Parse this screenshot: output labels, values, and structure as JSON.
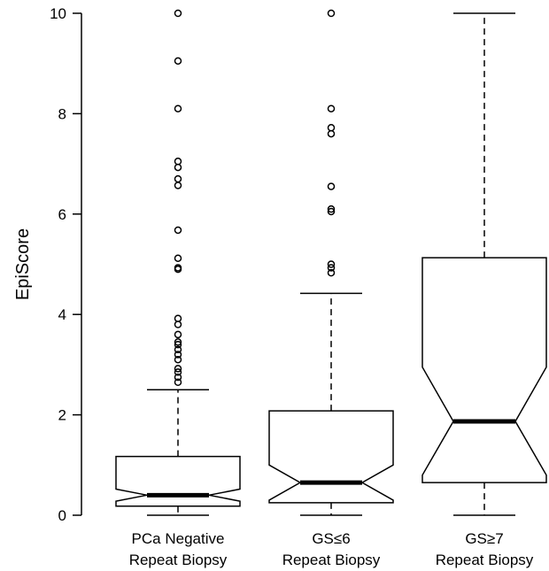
{
  "chart_data": {
    "type": "box",
    "notched": true,
    "ylabel": "EpiScore",
    "ylim": [
      0,
      10
    ],
    "yticks": [
      0,
      2,
      4,
      6,
      8,
      10
    ],
    "axis_style": "left and bottom axes only, no grid",
    "categories": [
      {
        "line1": "PCa Negative",
        "line2": "Repeat Biopsy"
      },
      {
        "line1": "GS≤6",
        "line2": "Repeat Biopsy"
      },
      {
        "line1": "GS≥7",
        "line2": "Repeat Biopsy"
      }
    ],
    "boxes": [
      {
        "min": 0.0,
        "q1": 0.18,
        "median": 0.4,
        "q3": 1.17,
        "max": 2.5,
        "notch_low": 0.28,
        "notch_high": 0.52,
        "outliers": [
          2.65,
          2.75,
          2.85,
          2.92,
          3.1,
          3.2,
          3.3,
          3.4,
          3.45,
          3.6,
          3.8,
          3.92,
          4.9,
          4.93,
          5.12,
          5.68,
          6.57,
          6.7,
          6.93,
          7.05,
          8.1,
          9.05,
          10.0
        ]
      },
      {
        "min": 0.0,
        "q1": 0.25,
        "median": 0.65,
        "q3": 2.08,
        "max": 4.42,
        "notch_low": 0.3,
        "notch_high": 1.0,
        "outliers": [
          4.83,
          4.93,
          5.0,
          6.05,
          6.1,
          6.55,
          7.6,
          7.72,
          8.1,
          10.0
        ]
      },
      {
        "min": 0.0,
        "q1": 0.65,
        "median": 1.87,
        "q3": 5.13,
        "max": 10.0,
        "notch_low": 0.8,
        "notch_high": 2.95,
        "outliers": []
      }
    ]
  }
}
